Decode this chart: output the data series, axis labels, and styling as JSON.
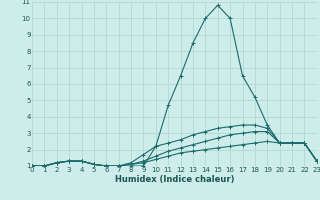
{
  "xlabel": "Humidex (Indice chaleur)",
  "bg_color": "#ceecea",
  "grid_color": "#b0d8d4",
  "line_color": "#1a6b6b",
  "xlim": [
    0,
    23
  ],
  "ylim": [
    1,
    11
  ],
  "yticks": [
    1,
    2,
    3,
    4,
    5,
    6,
    7,
    8,
    9,
    10,
    11
  ],
  "xticks": [
    0,
    1,
    2,
    3,
    4,
    5,
    6,
    7,
    8,
    9,
    10,
    11,
    12,
    13,
    14,
    15,
    16,
    17,
    18,
    19,
    20,
    21,
    22,
    23
  ],
  "series": [
    {
      "x": [
        0,
        1,
        2,
        3,
        4,
        5,
        6,
        7,
        8,
        9,
        10,
        11,
        12,
        13,
        14,
        15,
        16,
        17,
        18,
        19,
        20,
        21,
        22,
        23
      ],
      "y": [
        1.0,
        1.0,
        1.2,
        1.3,
        1.3,
        1.1,
        1.0,
        0.9,
        1.0,
        1.0,
        2.2,
        4.7,
        6.5,
        8.5,
        10.0,
        10.8,
        10.0,
        6.5,
        5.2,
        3.5,
        2.4,
        2.4,
        2.4,
        1.3
      ]
    },
    {
      "x": [
        0,
        1,
        2,
        3,
        4,
        5,
        6,
        7,
        8,
        9,
        10,
        11,
        12,
        13,
        14,
        15,
        16,
        17,
        18,
        19,
        20,
        21,
        22,
        23
      ],
      "y": [
        1.0,
        1.0,
        1.2,
        1.3,
        1.3,
        1.1,
        1.0,
        1.0,
        1.2,
        1.7,
        2.2,
        2.4,
        2.6,
        2.9,
        3.1,
        3.3,
        3.4,
        3.5,
        3.5,
        3.3,
        2.4,
        2.4,
        2.4,
        1.3
      ]
    },
    {
      "x": [
        0,
        1,
        2,
        3,
        4,
        5,
        6,
        7,
        8,
        9,
        10,
        11,
        12,
        13,
        14,
        15,
        16,
        17,
        18,
        19,
        20,
        21,
        22,
        23
      ],
      "y": [
        1.0,
        1.0,
        1.2,
        1.3,
        1.3,
        1.1,
        1.0,
        1.0,
        1.1,
        1.3,
        1.6,
        1.9,
        2.1,
        2.3,
        2.5,
        2.7,
        2.9,
        3.0,
        3.1,
        3.1,
        2.4,
        2.4,
        2.4,
        1.3
      ]
    },
    {
      "x": [
        0,
        1,
        2,
        3,
        4,
        5,
        6,
        7,
        8,
        9,
        10,
        11,
        12,
        13,
        14,
        15,
        16,
        17,
        18,
        19,
        20,
        21,
        22,
        23
      ],
      "y": [
        1.0,
        1.0,
        1.2,
        1.3,
        1.3,
        1.1,
        1.0,
        1.0,
        1.1,
        1.2,
        1.4,
        1.6,
        1.8,
        1.9,
        2.0,
        2.1,
        2.2,
        2.3,
        2.4,
        2.5,
        2.4,
        2.4,
        2.4,
        1.3
      ]
    }
  ]
}
